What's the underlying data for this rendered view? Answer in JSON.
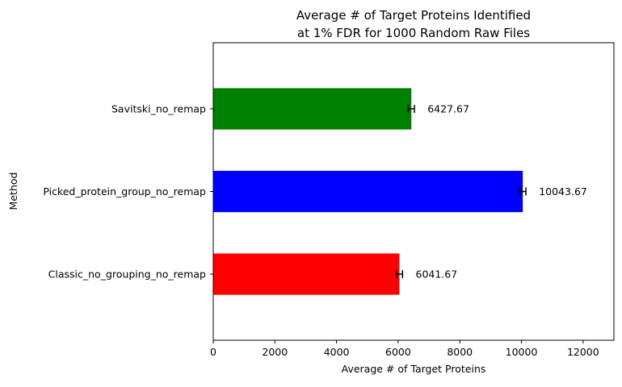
{
  "chart_data": {
    "type": "bar",
    "orientation": "horizontal",
    "title_lines": [
      "Average # of Target Proteins Identified",
      "at 1% FDR for 1000 Random Raw Files"
    ],
    "xlabel": "Average # of Target Proteins",
    "ylabel": "Method",
    "xlim": [
      0,
      13000
    ],
    "xticks": [
      0,
      2000,
      4000,
      6000,
      8000,
      10000,
      12000
    ],
    "categories": [
      "Classic_no_grouping_no_remap",
      "Picked_protein_group_no_remap",
      "Savitski_no_remap"
    ],
    "values": [
      6041.67,
      10043.67,
      6427.67
    ],
    "value_labels": [
      "6041.67",
      "10043.67",
      "6427.67"
    ],
    "errors": [
      100,
      100,
      100
    ],
    "colors": [
      "#ff0000",
      "#0000ff",
      "#008000"
    ],
    "grid": false,
    "legend": "none"
  }
}
